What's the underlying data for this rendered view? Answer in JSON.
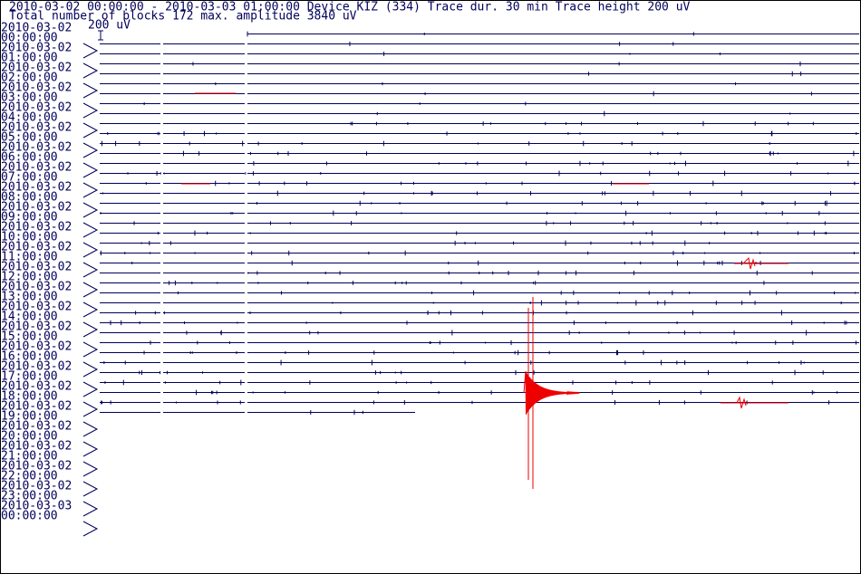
{
  "header": {
    "line1": "2010-03-02 00:00:00 - 2010-03-03 01:00:00  Device  KIZ (334)  Trace dur. 30 min  Trace height 200 uV",
    "line2": "Total number of blocks 172 max. amplitude 3840 uV"
  },
  "scale_label": "200 uV",
  "rows": [
    {
      "date": "2010-03-02",
      "time": "00:00:00"
    },
    {
      "date": "2010-03-02",
      "time": "01:00:00"
    },
    {
      "date": "2010-03-02",
      "time": "02:00:00"
    },
    {
      "date": "2010-03-02",
      "time": "03:00:00"
    },
    {
      "date": "2010-03-02",
      "time": "04:00:00"
    },
    {
      "date": "2010-03-02",
      "time": "05:00:00"
    },
    {
      "date": "2010-03-02",
      "time": "06:00:00"
    },
    {
      "date": "2010-03-02",
      "time": "07:00:00"
    },
    {
      "date": "2010-03-02",
      "time": "08:00:00"
    },
    {
      "date": "2010-03-02",
      "time": "09:00:00"
    },
    {
      "date": "2010-03-02",
      "time": "10:00:00"
    },
    {
      "date": "2010-03-02",
      "time": "11:00:00"
    },
    {
      "date": "2010-03-02",
      "time": "12:00:00"
    },
    {
      "date": "2010-03-02",
      "time": "13:00:00"
    },
    {
      "date": "2010-03-02",
      "time": "14:00:00"
    },
    {
      "date": "2010-03-02",
      "time": "15:00:00"
    },
    {
      "date": "2010-03-02",
      "time": "16:00:00"
    },
    {
      "date": "2010-03-02",
      "time": "17:00:00"
    },
    {
      "date": "2010-03-02",
      "time": "18:00:00"
    },
    {
      "date": "2010-03-02",
      "time": "19:00:00"
    },
    {
      "date": "2010-03-02",
      "time": "20:00:00"
    },
    {
      "date": "2010-03-02",
      "time": "21:00:00"
    },
    {
      "date": "2010-03-02",
      "time": "22:00:00"
    },
    {
      "date": "2010-03-02",
      "time": "23:00:00"
    },
    {
      "date": "2010-03-03",
      "time": "00:00:00"
    }
  ]
}
